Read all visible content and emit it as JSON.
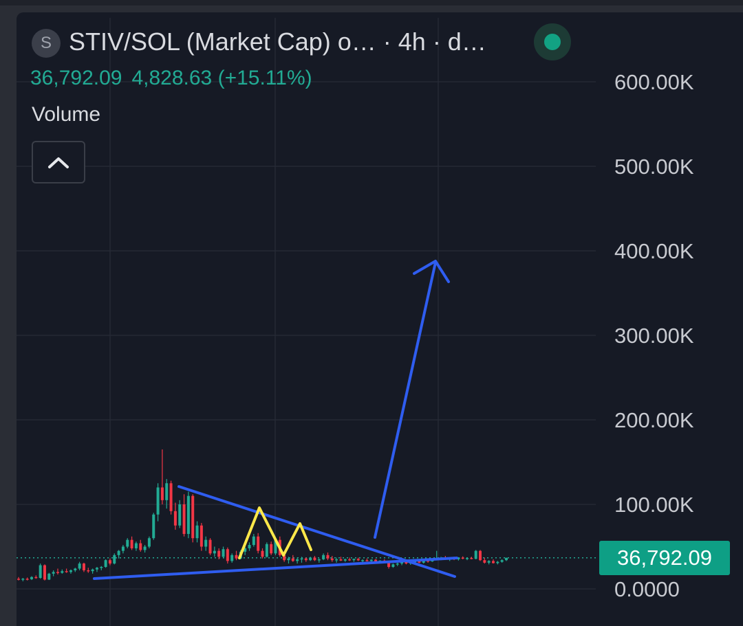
{
  "header": {
    "symbol_initial": "S",
    "title": "STIV/SOL (Market Cap) o… · 4h · d…",
    "last_value": "36,792.09",
    "change": "4,828.63 (+15.11%)",
    "status_color": "#12a283"
  },
  "indicator": {
    "label": "Volume",
    "collapse_icon": "chevron-up-icon"
  },
  "price_tag": {
    "value": "36,792.09",
    "color": "#0e9f85"
  },
  "colors": {
    "up": "#22ab94",
    "down": "#f23645",
    "trendline": "#2f5df0",
    "pattern": "#ffe84a"
  },
  "chart_data": {
    "type": "candlestick",
    "title": "STIV/SOL (Market Cap) o… · 4h · d…",
    "ylim": [
      0,
      620000
    ],
    "y_ticks": [
      0,
      100000,
      200000,
      300000,
      400000,
      500000,
      600000
    ],
    "y_tick_labels": [
      "0.0000",
      "100.00K",
      "200.00K",
      "300.00K",
      "400.00K",
      "500.00K",
      "600.00K"
    ],
    "last_price": 36792.09,
    "grid": true,
    "candles": [
      [
        12000,
        14000,
        10000,
        11000
      ],
      [
        11000,
        13000,
        9000,
        12000
      ],
      [
        12000,
        13500,
        10000,
        11500
      ],
      [
        11500,
        15000,
        10500,
        14000
      ],
      [
        14000,
        16000,
        12000,
        13000
      ],
      [
        13000,
        30000,
        12000,
        28000
      ],
      [
        28000,
        29000,
        10000,
        11000
      ],
      [
        11000,
        19000,
        10500,
        18000
      ],
      [
        18000,
        22000,
        15000,
        20000
      ],
      [
        20000,
        24000,
        17000,
        19000
      ],
      [
        19000,
        23000,
        18000,
        21000
      ],
      [
        21000,
        24000,
        19000,
        20000
      ],
      [
        20000,
        23000,
        18000,
        22000
      ],
      [
        22000,
        25000,
        20000,
        24000
      ],
      [
        24000,
        32000,
        22000,
        30000
      ],
      [
        30000,
        31000,
        20000,
        22000
      ],
      [
        22000,
        25000,
        19000,
        21000
      ],
      [
        21000,
        24000,
        18000,
        23000
      ],
      [
        23000,
        26000,
        20000,
        25000
      ],
      [
        25000,
        27000,
        22000,
        26000
      ],
      [
        26000,
        35000,
        25000,
        34000
      ],
      [
        34000,
        36000,
        28000,
        30000
      ],
      [
        30000,
        42000,
        29000,
        40000
      ],
      [
        40000,
        46000,
        36000,
        45000
      ],
      [
        45000,
        52000,
        42000,
        50000
      ],
      [
        50000,
        60000,
        48000,
        58000
      ],
      [
        58000,
        62000,
        46000,
        48000
      ],
      [
        48000,
        56000,
        45000,
        54000
      ],
      [
        54000,
        58000,
        44000,
        46000
      ],
      [
        46000,
        52000,
        43000,
        50000
      ],
      [
        50000,
        62000,
        48000,
        60000
      ],
      [
        60000,
        90000,
        58000,
        88000
      ],
      [
        88000,
        125000,
        80000,
        120000
      ],
      [
        120000,
        165000,
        100000,
        105000
      ],
      [
        105000,
        130000,
        95000,
        125000
      ],
      [
        125000,
        128000,
        88000,
        92000
      ],
      [
        92000,
        102000,
        70000,
        75000
      ],
      [
        75000,
        105000,
        72000,
        100000
      ],
      [
        100000,
        112000,
        62000,
        65000
      ],
      [
        65000,
        115000,
        60000,
        110000
      ],
      [
        110000,
        112000,
        55000,
        60000
      ],
      [
        60000,
        80000,
        55000,
        75000
      ],
      [
        75000,
        78000,
        45000,
        50000
      ],
      [
        50000,
        62000,
        45000,
        58000
      ],
      [
        58000,
        60000,
        40000,
        42000
      ],
      [
        42000,
        50000,
        38000,
        45000
      ],
      [
        45000,
        48000,
        35000,
        38000
      ],
      [
        38000,
        50000,
        36000,
        47000
      ],
      [
        47000,
        49000,
        30000,
        33000
      ],
      [
        33000,
        42000,
        31000,
        40000
      ],
      [
        40000,
        45000,
        34000,
        36000
      ],
      [
        36000,
        46000,
        35000,
        44000
      ],
      [
        44000,
        50000,
        40000,
        48000
      ],
      [
        48000,
        55000,
        45000,
        52000
      ],
      [
        52000,
        65000,
        50000,
        62000
      ],
      [
        62000,
        66000,
        42000,
        45000
      ],
      [
        45000,
        48000,
        36000,
        38000
      ],
      [
        38000,
        55000,
        37000,
        53000
      ],
      [
        53000,
        56000,
        40000,
        42000
      ],
      [
        42000,
        60000,
        40000,
        58000
      ],
      [
        58000,
        62000,
        38000,
        40000
      ],
      [
        40000,
        44000,
        32000,
        34000
      ],
      [
        34000,
        38000,
        30000,
        36000
      ],
      [
        36000,
        40000,
        32000,
        33000
      ],
      [
        33000,
        37000,
        30000,
        35000
      ],
      [
        35000,
        38000,
        31000,
        36000
      ],
      [
        36000,
        37000,
        32000,
        34000
      ],
      [
        34000,
        38000,
        33000,
        37000
      ],
      [
        37000,
        39000,
        33000,
        34000
      ],
      [
        34000,
        36000,
        31000,
        35000
      ],
      [
        35000,
        42000,
        34000,
        40000
      ],
      [
        40000,
        43000,
        34000,
        36000
      ],
      [
        36000,
        39000,
        32000,
        34000
      ],
      [
        34000,
        37000,
        31000,
        35000
      ],
      [
        35000,
        38000,
        33000,
        33500
      ],
      [
        33500,
        36000,
        32000,
        35000
      ],
      [
        35000,
        37000,
        33000,
        34000
      ],
      [
        34000,
        36000,
        32000,
        35500
      ],
      [
        35500,
        37000,
        33000,
        33800
      ],
      [
        33800,
        35000,
        31000,
        34000
      ],
      [
        34000,
        36000,
        32500,
        33000
      ],
      [
        33000,
        35000,
        31000,
        34500
      ],
      [
        34500,
        35500,
        32000,
        32500
      ],
      [
        32500,
        34000,
        30000,
        33500
      ],
      [
        33500,
        35000,
        31000,
        32000
      ],
      [
        32000,
        33000,
        24000,
        26000
      ],
      [
        26000,
        30000,
        25000,
        29000
      ],
      [
        29000,
        31000,
        27000,
        30000
      ],
      [
        30000,
        33000,
        28000,
        32000
      ],
      [
        32000,
        33500,
        29000,
        30000
      ],
      [
        30000,
        32000,
        28500,
        31500
      ],
      [
        31500,
        34000,
        30000,
        33000
      ],
      [
        33000,
        34500,
        30500,
        31000
      ],
      [
        31000,
        34000,
        30000,
        33500
      ],
      [
        33500,
        35000,
        31000,
        32500
      ],
      [
        32500,
        36000,
        32000,
        35500
      ],
      [
        35500,
        45000,
        35000,
        36000
      ],
      [
        36000,
        38000,
        34000,
        37000
      ],
      [
        37000,
        39000,
        34500,
        35000
      ],
      [
        35000,
        37000,
        33000,
        36500
      ],
      [
        36500,
        38000,
        34000,
        35000
      ],
      [
        35000,
        37500,
        33500,
        37000
      ],
      [
        37000,
        38500,
        35000,
        36000
      ],
      [
        36000,
        37000,
        34000,
        36500
      ],
      [
        36500,
        38000,
        35000,
        35500
      ],
      [
        35500,
        46000,
        35000,
        45000
      ],
      [
        45000,
        46000,
        33000,
        34000
      ],
      [
        34000,
        37000,
        30000,
        31000
      ],
      [
        31000,
        34000,
        29000,
        33000
      ],
      [
        33000,
        35000,
        30000,
        30500
      ],
      [
        30500,
        33000,
        29000,
        32000
      ],
      [
        32000,
        35000,
        31000,
        34000
      ],
      [
        34000,
        37000,
        33000,
        36792.09
      ]
    ],
    "annotations": [
      {
        "type": "trendline",
        "name": "descending-resistance",
        "color": "#2f5df0"
      },
      {
        "type": "trendline",
        "name": "ascending-support",
        "color": "#2f5df0"
      },
      {
        "type": "arrow",
        "name": "breakout-arrow",
        "color": "#2f5df0"
      },
      {
        "type": "polyline",
        "name": "double-top-zigzag",
        "color": "#ffe84a"
      }
    ]
  }
}
